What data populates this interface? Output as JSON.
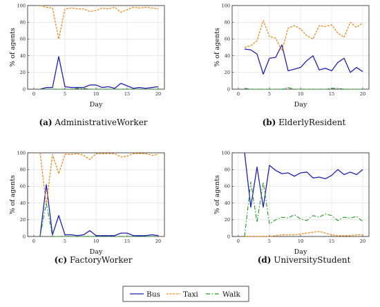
{
  "colors": {
    "bus": "#1f1fb4",
    "taxi": "#f08a1a",
    "walk": "#1e9a1e",
    "grid": "#d9d9d9",
    "axis": "#222222"
  },
  "legend": {
    "items": [
      {
        "key": "bus",
        "label": "Bus"
      },
      {
        "key": "taxi",
        "label": "Taxi"
      },
      {
        "key": "walk",
        "label": "Walk"
      }
    ]
  },
  "chart_data": [
    {
      "type": "line",
      "caption_letter": "(a)",
      "caption_name": "AdministrativeWorker",
      "xlabel": "Day",
      "ylabel": "% of agents",
      "xlim": [
        -1,
        21
      ],
      "ylim": [
        0,
        100
      ],
      "xticks": [
        0,
        5,
        10,
        15,
        20
      ],
      "yticks": [
        0,
        20,
        40,
        60,
        80,
        100
      ],
      "grid": true,
      "x": [
        1,
        2,
        3,
        4,
        5,
        6,
        7,
        8,
        9,
        10,
        11,
        12,
        13,
        14,
        15,
        16,
        17,
        18,
        19,
        20
      ],
      "series": [
        {
          "name": "Bus",
          "key": "bus",
          "values": [
            0,
            2,
            2,
            39,
            3,
            2,
            2,
            2,
            5,
            5,
            2,
            3,
            1,
            7,
            4,
            1,
            2,
            1,
            2,
            3
          ]
        },
        {
          "name": "Taxi",
          "key": "taxi",
          "values": [
            100,
            98,
            97,
            60,
            96,
            97,
            96,
            96,
            93,
            94,
            97,
            96,
            98,
            92,
            95,
            98,
            97,
            98,
            97,
            96
          ]
        },
        {
          "name": "Walk",
          "key": "walk",
          "values": [
            0,
            0,
            0,
            0,
            0,
            0,
            1,
            1,
            0,
            0,
            0,
            0,
            0,
            0,
            0,
            0,
            0,
            0,
            0,
            0
          ]
        }
      ]
    },
    {
      "type": "line",
      "caption_letter": "(b)",
      "caption_name": "ElderlyResident",
      "xlabel": "Day",
      "ylabel": "% of agents",
      "xlim": [
        -1,
        21
      ],
      "ylim": [
        0,
        100
      ],
      "xticks": [
        0,
        5,
        10,
        15,
        20
      ],
      "yticks": [
        0,
        20,
        40,
        60,
        80,
        100
      ],
      "grid": true,
      "x": [
        1,
        2,
        3,
        4,
        5,
        6,
        7,
        8,
        9,
        10,
        11,
        12,
        13,
        14,
        15,
        16,
        17,
        18,
        19,
        20
      ],
      "series": [
        {
          "name": "Bus",
          "key": "bus",
          "values": [
            48,
            47,
            42,
            18,
            37,
            38,
            53,
            22,
            24,
            26,
            34,
            40,
            23,
            25,
            22,
            32,
            37,
            20,
            26,
            21
          ]
        },
        {
          "name": "Taxi",
          "key": "taxi",
          "values": [
            50,
            52,
            58,
            82,
            63,
            61,
            46,
            73,
            76,
            72,
            64,
            60,
            76,
            75,
            77,
            67,
            62,
            80,
            74,
            79
          ]
        },
        {
          "name": "Walk",
          "key": "walk",
          "values": [
            1,
            0,
            0,
            0,
            0,
            0,
            0,
            2,
            0,
            0,
            0,
            0,
            0,
            0,
            1,
            1,
            0,
            0,
            0,
            0
          ]
        }
      ]
    },
    {
      "type": "line",
      "caption_letter": "(c)",
      "caption_name": "FactoryWorker",
      "xlabel": "Day",
      "ylabel": "% of agents",
      "xlim": [
        -1,
        21
      ],
      "ylim": [
        0,
        100
      ],
      "xticks": [
        0,
        5,
        10,
        15,
        20
      ],
      "yticks": [
        0,
        20,
        40,
        60,
        80,
        100
      ],
      "grid": true,
      "x": [
        1,
        2,
        3,
        4,
        5,
        6,
        7,
        8,
        9,
        10,
        11,
        12,
        13,
        14,
        15,
        16,
        17,
        18,
        19,
        20
      ],
      "series": [
        {
          "name": "Bus",
          "key": "bus",
          "values": [
            0,
            62,
            2,
            25,
            2,
            2,
            1,
            2,
            7,
            1,
            1,
            1,
            1,
            4,
            4,
            1,
            1,
            1,
            2,
            1
          ]
        },
        {
          "name": "Taxi",
          "key": "taxi",
          "values": [
            100,
            38,
            98,
            75,
            98,
            98,
            99,
            97,
            92,
            99,
            99,
            99,
            99,
            95,
            96,
            99,
            99,
            99,
            97,
            98
          ]
        },
        {
          "name": "Walk",
          "key": "walk",
          "values": [
            0,
            40,
            0,
            0,
            0,
            0,
            0,
            0,
            0,
            0,
            0,
            0,
            0,
            0,
            0,
            0,
            0,
            0,
            0,
            0
          ]
        }
      ]
    },
    {
      "type": "line",
      "caption_letter": "(d)",
      "caption_name": "UniversityStudent",
      "xlabel": "Day",
      "ylabel": "% of agents",
      "xlim": [
        -1,
        21
      ],
      "ylim": [
        0,
        100
      ],
      "xticks": [
        0,
        5,
        10,
        15,
        20
      ],
      "yticks": [
        0,
        20,
        40,
        60,
        80,
        100
      ],
      "grid": true,
      "x": [
        1,
        2,
        3,
        4,
        5,
        6,
        7,
        8,
        9,
        10,
        11,
        12,
        13,
        14,
        15,
        16,
        17,
        18,
        19,
        20
      ],
      "series": [
        {
          "name": "Bus",
          "key": "bus",
          "values": [
            100,
            35,
            83,
            35,
            85,
            79,
            75,
            76,
            72,
            76,
            77,
            70,
            71,
            69,
            73,
            80,
            74,
            77,
            74,
            80
          ]
        },
        {
          "name": "Taxi",
          "key": "taxi",
          "values": [
            0,
            0,
            0,
            0,
            0,
            1,
            2,
            2,
            2,
            3,
            4,
            5,
            6,
            4,
            2,
            1,
            1,
            1,
            2,
            2
          ]
        },
        {
          "name": "Walk",
          "key": "walk",
          "values": [
            0,
            65,
            17,
            65,
            15,
            20,
            23,
            22,
            26,
            21,
            19,
            25,
            23,
            27,
            25,
            19,
            23,
            22,
            24,
            18
          ]
        }
      ]
    }
  ]
}
